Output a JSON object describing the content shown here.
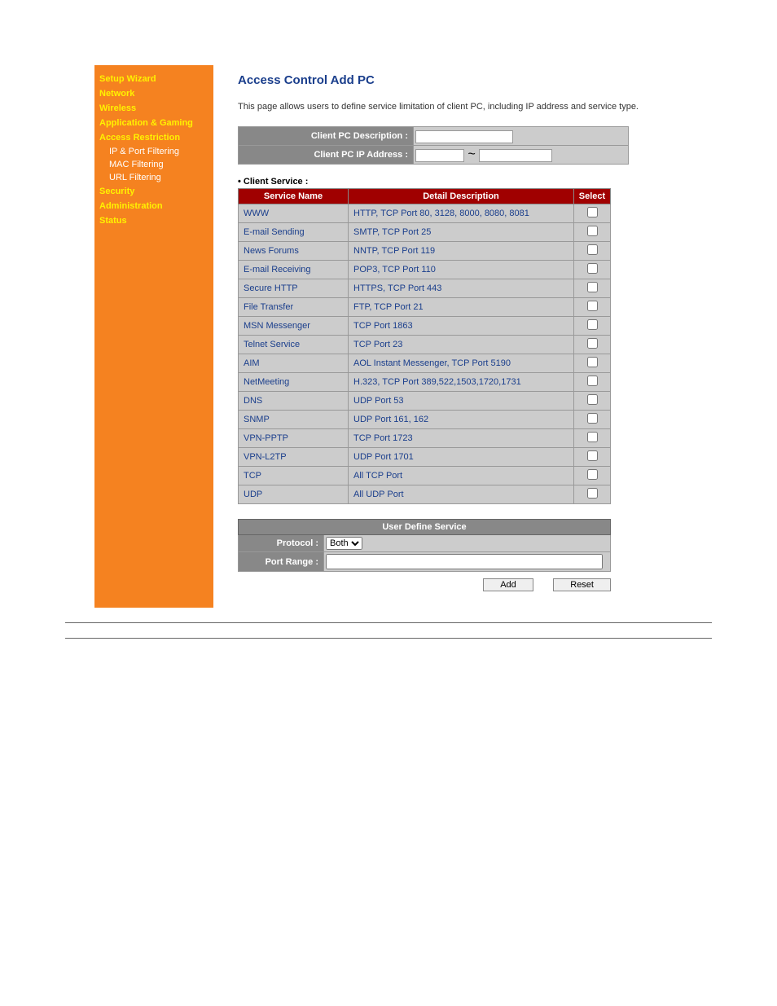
{
  "sidebar": {
    "items": [
      {
        "label": "Setup Wizard",
        "type": "section-alt"
      },
      {
        "label": "Network",
        "type": "section-alt"
      },
      {
        "label": "Wireless",
        "type": "section-alt"
      },
      {
        "label": "Application & Gaming",
        "type": "section-alt"
      },
      {
        "label": "Access Restriction",
        "type": "section-alt"
      },
      {
        "label": "IP & Port Filtering",
        "type": "sub"
      },
      {
        "label": "MAC Filtering",
        "type": "sub"
      },
      {
        "label": "URL Filtering",
        "type": "sub"
      },
      {
        "label": "Security",
        "type": "section-alt"
      },
      {
        "label": "Administration",
        "type": "section-alt"
      },
      {
        "label": "Status",
        "type": "section-alt"
      }
    ]
  },
  "page": {
    "title": "Access Control Add PC",
    "description": "This page allows users to define service limitation of client PC, including IP address and service type."
  },
  "form": {
    "desc_label": "Client PC Description :",
    "ip_label": "Client PC IP Address :",
    "ip_separator": "~"
  },
  "client_service": {
    "header": "Client Service :",
    "columns": {
      "name": "Service Name",
      "detail": "Detail Description",
      "select": "Select"
    },
    "rows": [
      {
        "name": "WWW",
        "detail": "HTTP, TCP Port 80, 3128, 8000, 8080, 8081"
      },
      {
        "name": "E-mail Sending",
        "detail": "SMTP, TCP Port 25"
      },
      {
        "name": "News Forums",
        "detail": "NNTP, TCP Port 119"
      },
      {
        "name": "E-mail Receiving",
        "detail": "POP3, TCP Port 110"
      },
      {
        "name": "Secure HTTP",
        "detail": "HTTPS, TCP Port 443"
      },
      {
        "name": "File Transfer",
        "detail": "FTP, TCP Port 21"
      },
      {
        "name": "MSN Messenger",
        "detail": "TCP Port 1863"
      },
      {
        "name": "Telnet Service",
        "detail": "TCP Port 23"
      },
      {
        "name": "AIM",
        "detail": "AOL Instant Messenger, TCP Port 5190"
      },
      {
        "name": "NetMeeting",
        "detail": "H.323, TCP Port 389,522,1503,1720,1731"
      },
      {
        "name": "DNS",
        "detail": "UDP Port 53"
      },
      {
        "name": "SNMP",
        "detail": "UDP Port 161, 162"
      },
      {
        "name": "VPN-PPTP",
        "detail": "TCP Port 1723"
      },
      {
        "name": "VPN-L2TP",
        "detail": "UDP Port 1701"
      },
      {
        "name": "TCP",
        "detail": "All TCP Port"
      },
      {
        "name": "UDP",
        "detail": "All UDP Port"
      }
    ]
  },
  "user_define": {
    "header": "User Define Service",
    "protocol_label": "Protocol :",
    "protocol_value": "Both",
    "port_range_label": "Port Range :"
  },
  "buttons": {
    "add": "Add",
    "reset": "Reset"
  },
  "colors": {
    "sidebar_bg": "#f58220",
    "sidebar_section_alt": "#fff200",
    "sidebar_text": "#ffffff",
    "title_color": "#1a3e8c",
    "table_header_red": "#a00000",
    "table_header_gray": "#888888",
    "table_cell_bg": "#cccccc",
    "table_text": "#1a3e8c"
  }
}
